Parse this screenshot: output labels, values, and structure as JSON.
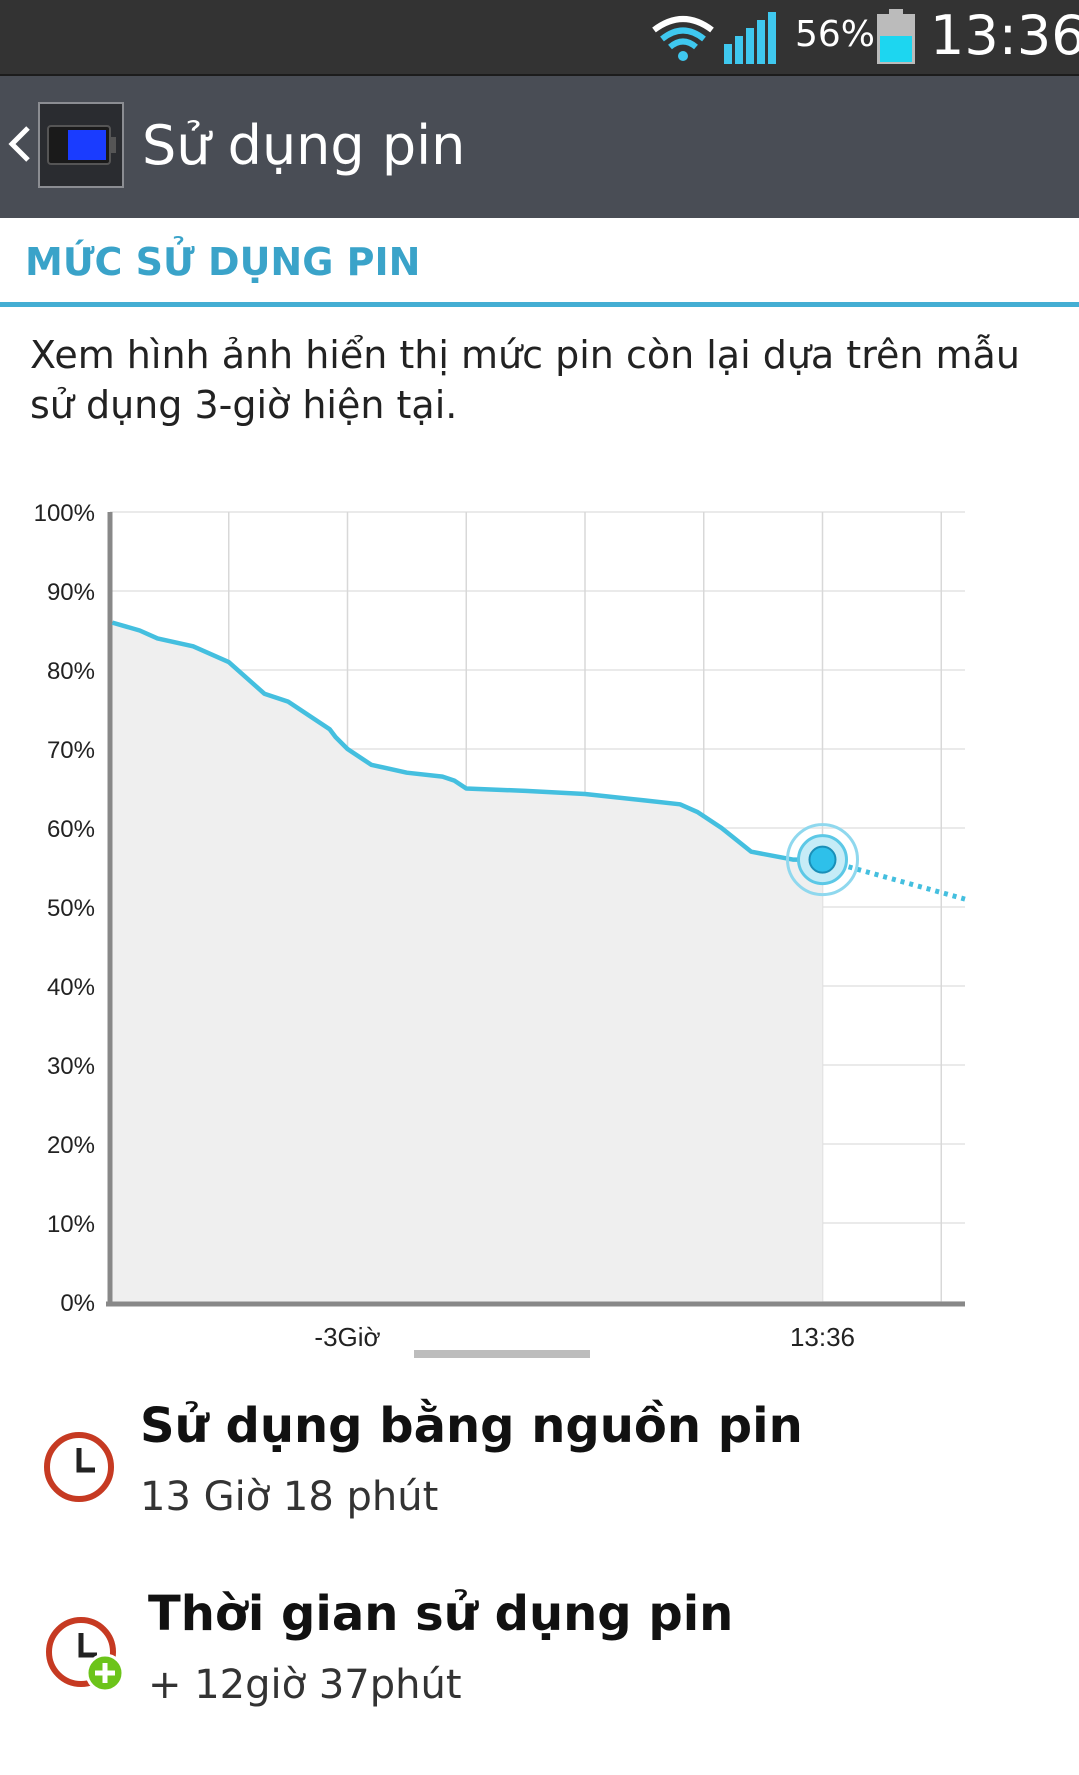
{
  "status_bar": {
    "battery_percent": "56%",
    "time": "13:36"
  },
  "action_bar": {
    "title": "Sử dụng pin"
  },
  "section": {
    "header": "MỨC SỬ DỤNG PIN",
    "description": "Xem hình ảnh hiển thị mức pin còn lại dựa trên mẫu sử dụng 3-giờ hiện tại."
  },
  "chart_data": {
    "type": "area",
    "y_tick_labels": [
      "100%",
      "90%",
      "80%",
      "70%",
      "60%",
      "50%",
      "40%",
      "30%",
      "20%",
      "10%",
      "0%"
    ],
    "x_tick_labels": [
      "-3Giờ",
      "13:36"
    ],
    "ylim": [
      0,
      100
    ],
    "xlim_hours": [
      -5,
      1
    ],
    "grid": true,
    "series": [
      {
        "style": "solid",
        "color": "#44bfdf",
        "points": [
          [
            -4.98,
            86
          ],
          [
            -4.75,
            85
          ],
          [
            -4.6,
            84
          ],
          [
            -4.3,
            83
          ],
          [
            -4.0,
            81
          ],
          [
            -3.7,
            77
          ],
          [
            -3.5,
            76
          ],
          [
            -3.25,
            73.5
          ],
          [
            -3.15,
            72.5
          ],
          [
            -3.1,
            71.5
          ],
          [
            -3.0,
            70
          ],
          [
            -2.8,
            68
          ],
          [
            -2.5,
            67
          ],
          [
            -2.2,
            66.5
          ],
          [
            -2.1,
            66
          ],
          [
            -2.0,
            65
          ],
          [
            -1.5,
            64.7
          ],
          [
            -1.0,
            64.3
          ],
          [
            -0.5,
            63.5
          ],
          [
            -0.2,
            63
          ],
          [
            -0.05,
            62
          ],
          [
            0.15,
            60
          ],
          [
            0.4,
            57
          ],
          [
            0.75,
            56
          ],
          [
            1.0,
            56
          ]
        ]
      },
      {
        "style": "dotted",
        "color": "#44bfdf",
        "points": [
          [
            1.0,
            56
          ],
          [
            2.2,
            51
          ]
        ]
      }
    ],
    "current_point": {
      "x": 1.0,
      "y": 56
    }
  },
  "items": [
    {
      "title": "Sử dụng bằng nguồn pin",
      "subtitle": "13 Giờ 18 phút",
      "icon": "clock-icon"
    },
    {
      "title": "Thời gian sử dụng pin",
      "subtitle": "+ 12giờ 37phút",
      "icon": "clock-plus-icon"
    }
  ],
  "colors": {
    "accent": "#44aed3",
    "line": "#44bfdf",
    "action_bar": "#494d55",
    "status_bar": "#333333"
  }
}
